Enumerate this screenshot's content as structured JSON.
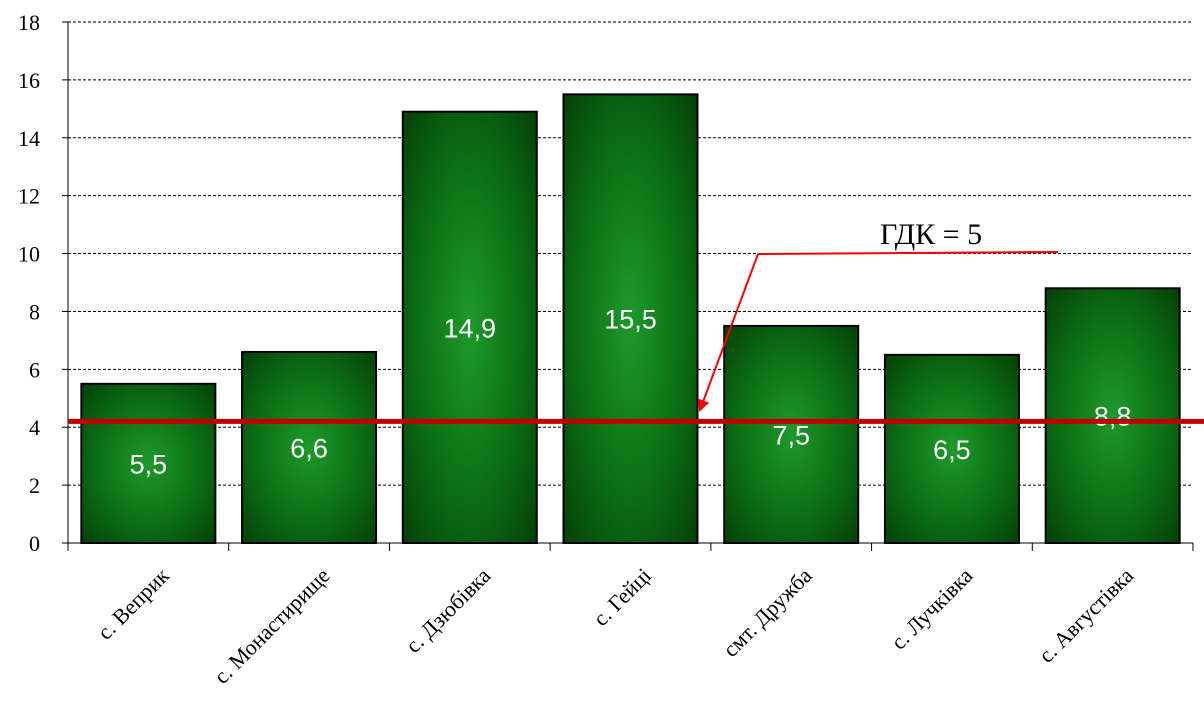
{
  "chart_data": {
    "type": "bar",
    "categories": [
      "с. Веприк",
      "с. Монастирище",
      "с. Дзюбівка",
      "с. Гейці",
      "смт. Дружба",
      "с. Лучківка",
      "с. Августівка"
    ],
    "values": [
      5.5,
      6.6,
      14.9,
      15.5,
      7.5,
      6.5,
      8.8
    ],
    "data_labels": [
      "5,5",
      "6,6",
      "14,9",
      "15,5",
      "7,5",
      "6,5",
      "8,8"
    ],
    "y_ticks": [
      0,
      2,
      4,
      6,
      8,
      10,
      12,
      14,
      16,
      18
    ],
    "ylim": [
      0,
      18
    ],
    "grid": "horizontal dashed",
    "reference_line": {
      "value": 4.2,
      "color": "#c00000"
    },
    "annotation": {
      "text": "ГДК = 5",
      "arrow_color": "#ff0000"
    },
    "bar_color": "#0b6b12",
    "bar_edge_color": "#000000"
  }
}
